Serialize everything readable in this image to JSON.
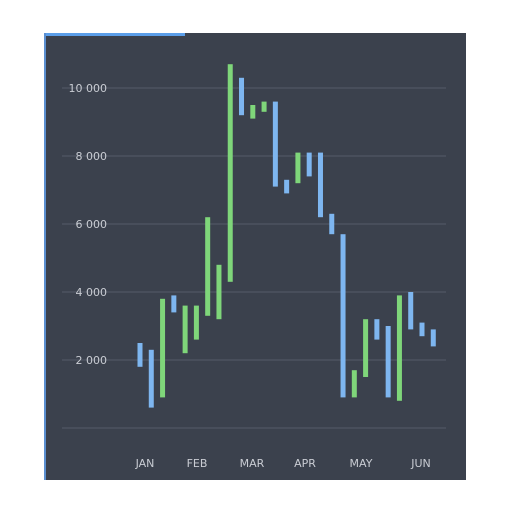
{
  "chart_data": {
    "type": "bar",
    "subtype": "candlestick-bars",
    "title": "",
    "xlabel": "",
    "ylabel": "",
    "ylim": [
      0,
      11000
    ],
    "yticks": [
      2000,
      4000,
      6000,
      8000,
      10000
    ],
    "ytick_labels": [
      "2 000",
      "4 000",
      "6 000",
      "8 000",
      "10 000"
    ],
    "x_categories": [
      "JAN",
      "FEB",
      "MAR",
      "APR",
      "MAY",
      "JUN"
    ],
    "grid": true,
    "colors": {
      "up": "#7fd67a",
      "down": "#7eb6f0",
      "grid": "#555c69",
      "background": "#3b414d"
    },
    "bars": [
      {
        "month": "JAN",
        "low": 1800,
        "high": 2500,
        "dir": "down"
      },
      {
        "month": "JAN",
        "low": 600,
        "high": 2300,
        "dir": "down"
      },
      {
        "month": "JAN",
        "low": 900,
        "high": 3800,
        "dir": "up"
      },
      {
        "month": "JAN",
        "low": 3400,
        "high": 3900,
        "dir": "down"
      },
      {
        "month": "FEB",
        "low": 2200,
        "high": 3600,
        "dir": "up"
      },
      {
        "month": "FEB",
        "low": 2600,
        "high": 3600,
        "dir": "up"
      },
      {
        "month": "FEB",
        "low": 3300,
        "high": 6200,
        "dir": "up"
      },
      {
        "month": "FEB",
        "low": 3200,
        "high": 4800,
        "dir": "up"
      },
      {
        "month": "MAR",
        "low": 4300,
        "high": 10700,
        "dir": "up"
      },
      {
        "month": "MAR",
        "low": 9200,
        "high": 10300,
        "dir": "down"
      },
      {
        "month": "MAR",
        "low": 9100,
        "high": 9500,
        "dir": "up"
      },
      {
        "month": "MAR",
        "low": 9300,
        "high": 9600,
        "dir": "up"
      },
      {
        "month": "MAR",
        "low": 7100,
        "high": 9600,
        "dir": "down"
      },
      {
        "month": "APR",
        "low": 6900,
        "high": 7300,
        "dir": "down"
      },
      {
        "month": "APR",
        "low": 7200,
        "high": 8100,
        "dir": "up"
      },
      {
        "month": "APR",
        "low": 7400,
        "high": 8100,
        "dir": "down"
      },
      {
        "month": "APR",
        "low": 6200,
        "high": 8100,
        "dir": "down"
      },
      {
        "month": "MAY",
        "low": 5700,
        "high": 6300,
        "dir": "down"
      },
      {
        "month": "MAY",
        "low": 900,
        "high": 5700,
        "dir": "down"
      },
      {
        "month": "MAY",
        "low": 900,
        "high": 1700,
        "dir": "up"
      },
      {
        "month": "MAY",
        "low": 1500,
        "high": 3200,
        "dir": "up"
      },
      {
        "month": "MAY",
        "low": 2600,
        "high": 3200,
        "dir": "down"
      },
      {
        "month": "MAY",
        "low": 900,
        "high": 3000,
        "dir": "down"
      },
      {
        "month": "JUN",
        "low": 800,
        "high": 3900,
        "dir": "up"
      },
      {
        "month": "JUN",
        "low": 2900,
        "high": 4000,
        "dir": "down"
      },
      {
        "month": "JUN",
        "low": 2700,
        "high": 3100,
        "dir": "down"
      },
      {
        "month": "JUN",
        "low": 2400,
        "high": 2900,
        "dir": "down"
      }
    ]
  }
}
